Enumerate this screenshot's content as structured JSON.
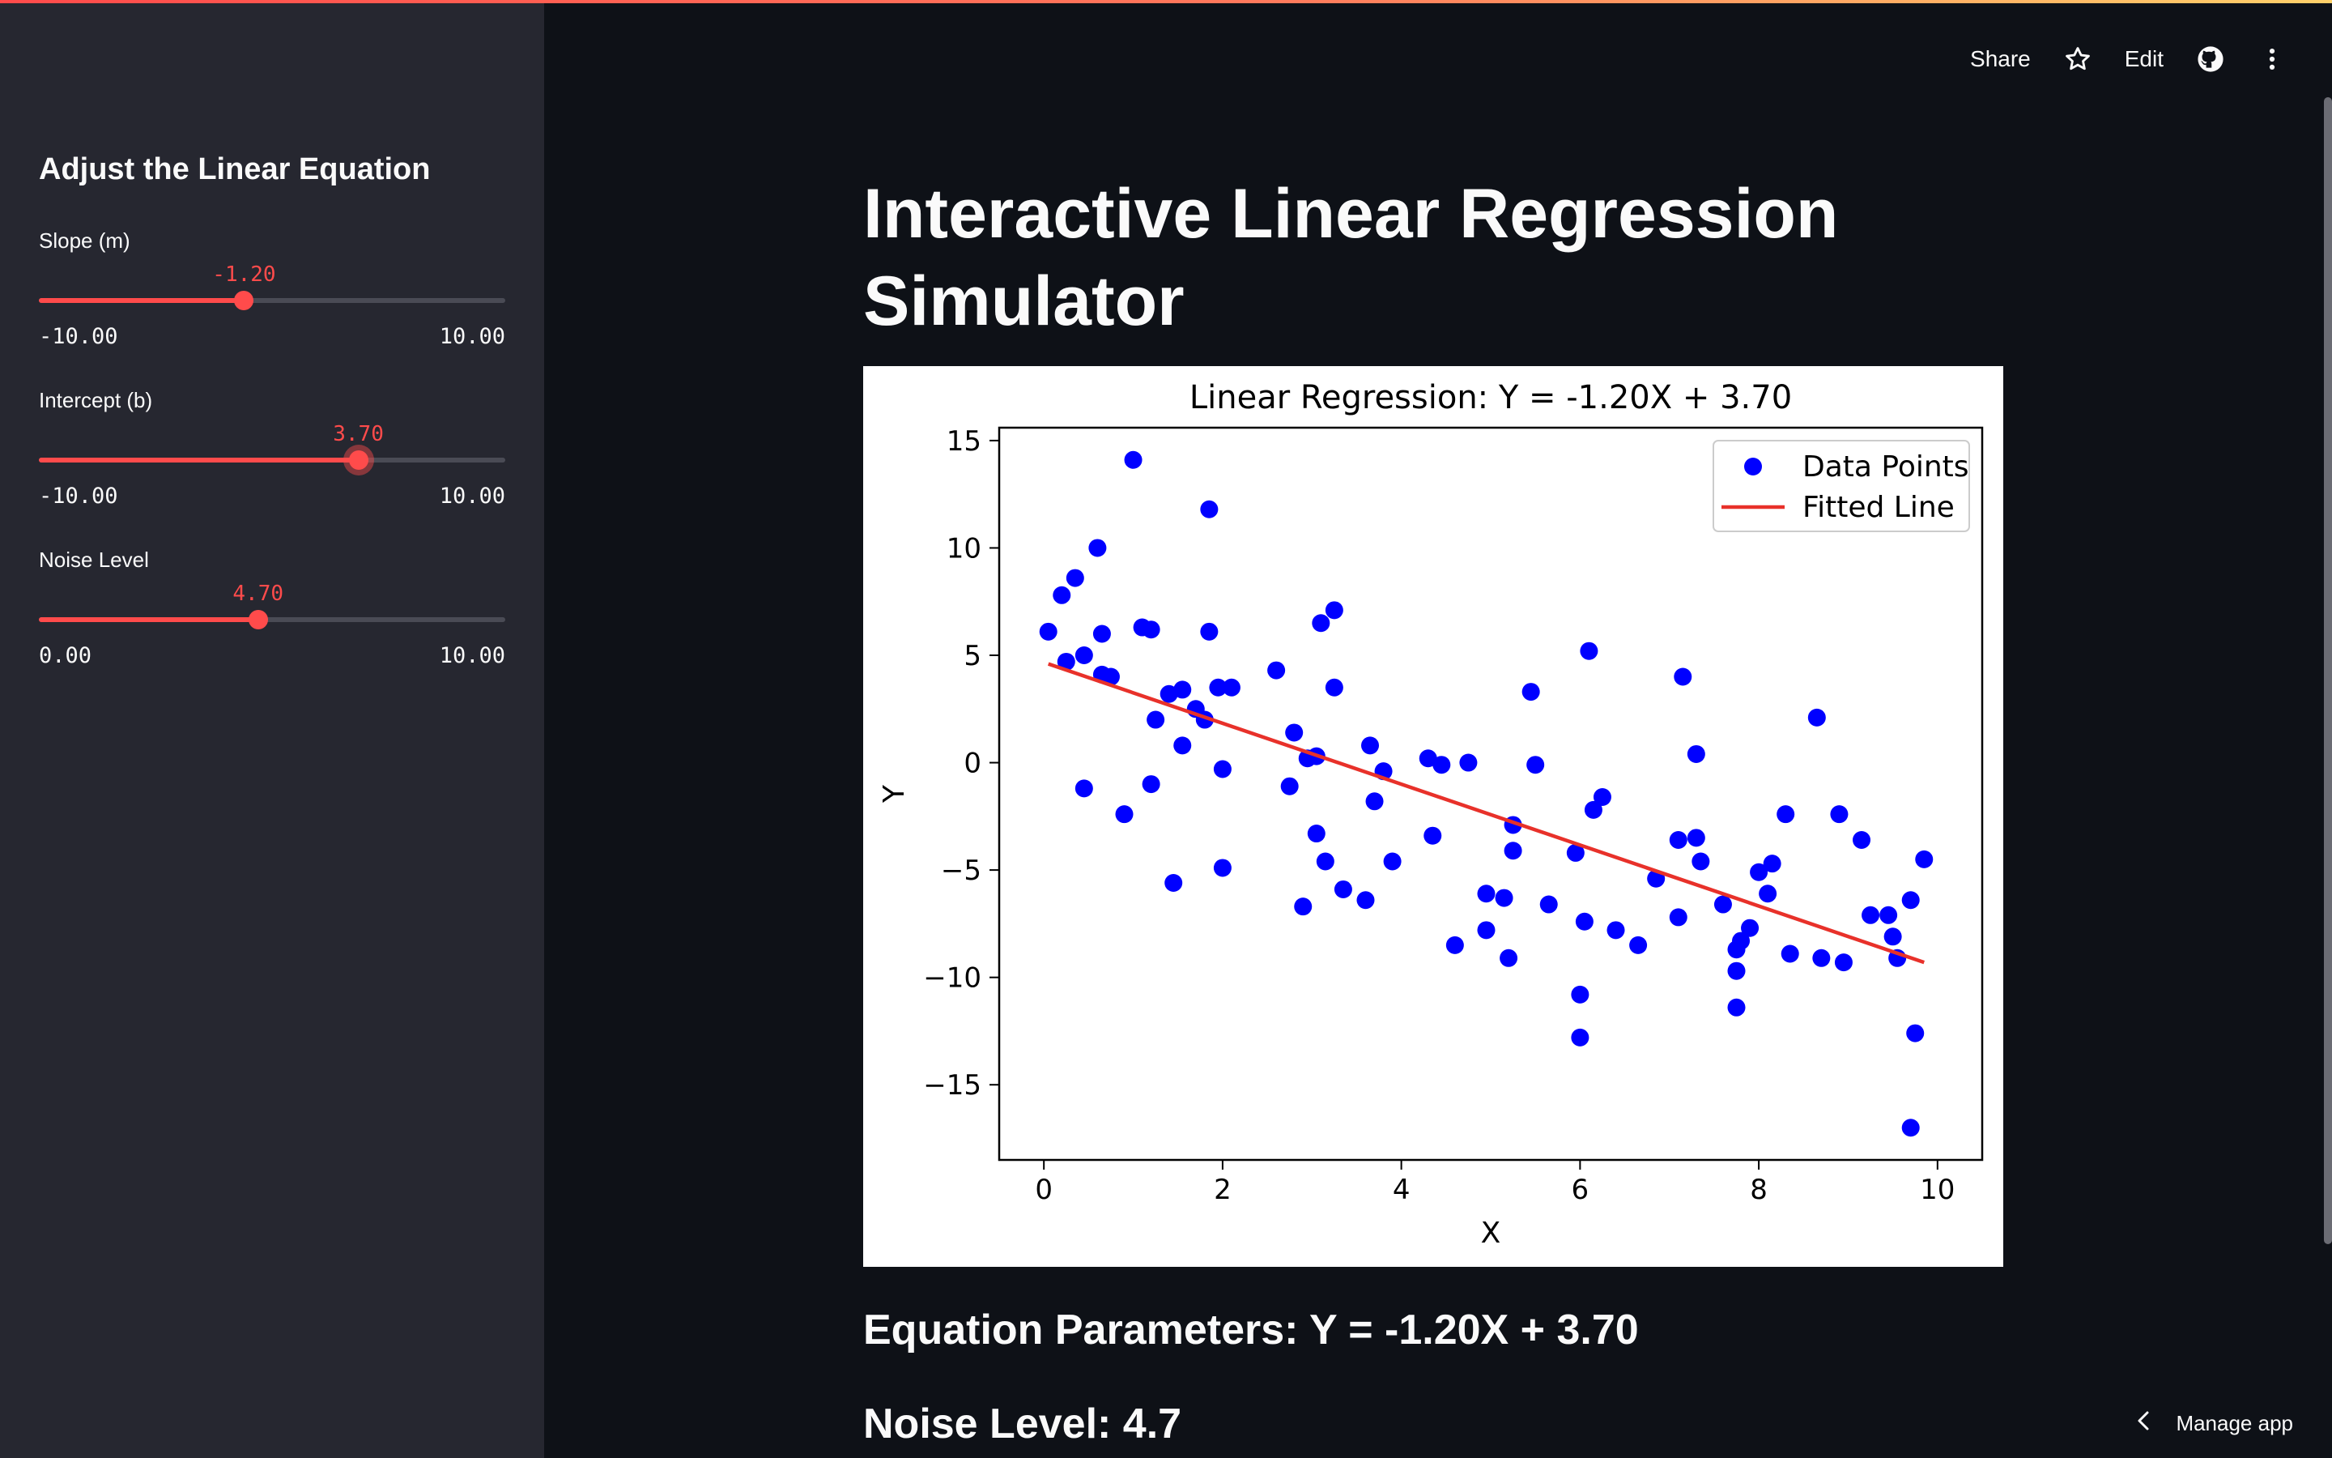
{
  "header": {
    "share_label": "Share",
    "edit_label": "Edit",
    "icons": [
      "star-icon",
      "github-icon",
      "more-vertical-icon"
    ]
  },
  "sidebar": {
    "title": "Adjust the Linear Equation",
    "sliders": [
      {
        "label": "Slope (m)",
        "value": "-1.20",
        "min": "-10.00",
        "max": "10.00",
        "fraction": 0.44
      },
      {
        "label": "Intercept (b)",
        "value": "3.70",
        "min": "-10.00",
        "max": "10.00",
        "fraction": 0.685
      },
      {
        "label": "Noise Level",
        "value": "4.70",
        "min": "0.00",
        "max": "10.00",
        "fraction": 0.47
      }
    ]
  },
  "main": {
    "title_line1": "Interactive Linear Regression",
    "title_line2": "Simulator",
    "equation_text": "Equation Parameters: Y = -1.20X + 3.70",
    "noise_text": "Noise Level: 4.7"
  },
  "footer": {
    "manage_label": "Manage app"
  },
  "colors": {
    "accent": "#ff4b4b",
    "points": "#0000ff",
    "line": "#e8312a"
  },
  "chart_data": {
    "type": "scatter",
    "title": "Linear Regression: Y = -1.20X + 3.70",
    "xlabel": "X",
    "ylabel": "Y",
    "xlim": [
      -0.5,
      10.5
    ],
    "ylim": [
      -18.5,
      15.6
    ],
    "xticks": [
      0,
      2,
      4,
      6,
      8,
      10
    ],
    "yticks": [
      15,
      10,
      5,
      0,
      -5,
      -10,
      -15
    ],
    "legend_position": "top-right",
    "grid": false,
    "series": [
      {
        "name": "Data Points",
        "kind": "scatter",
        "points": [
          [
            0.05,
            6.1
          ],
          [
            0.2,
            7.8
          ],
          [
            0.25,
            4.7
          ],
          [
            0.35,
            8.6
          ],
          [
            0.45,
            5.0
          ],
          [
            0.45,
            -1.2
          ],
          [
            0.6,
            10.0
          ],
          [
            0.65,
            6.0
          ],
          [
            0.65,
            4.1
          ],
          [
            0.75,
            4.0
          ],
          [
            0.9,
            -2.4
          ],
          [
            1.0,
            14.1
          ],
          [
            1.1,
            6.3
          ],
          [
            1.2,
            6.2
          ],
          [
            1.2,
            -1.0
          ],
          [
            1.25,
            2.0
          ],
          [
            1.4,
            3.2
          ],
          [
            1.45,
            -5.6
          ],
          [
            1.55,
            3.4
          ],
          [
            1.55,
            0.8
          ],
          [
            1.7,
            2.5
          ],
          [
            1.8,
            2.0
          ],
          [
            1.85,
            11.8
          ],
          [
            1.85,
            6.1
          ],
          [
            1.95,
            3.5
          ],
          [
            2.0,
            -0.3
          ],
          [
            2.0,
            -4.9
          ],
          [
            2.1,
            3.5
          ],
          [
            2.6,
            4.3
          ],
          [
            2.75,
            -1.1
          ],
          [
            2.8,
            1.4
          ],
          [
            2.9,
            -6.7
          ],
          [
            2.95,
            0.2
          ],
          [
            3.05,
            0.3
          ],
          [
            3.05,
            -3.3
          ],
          [
            3.1,
            6.5
          ],
          [
            3.15,
            -4.6
          ],
          [
            3.25,
            7.1
          ],
          [
            3.25,
            3.5
          ],
          [
            3.35,
            -5.9
          ],
          [
            3.6,
            -6.4
          ],
          [
            3.65,
            0.8
          ],
          [
            3.7,
            -1.8
          ],
          [
            3.8,
            -0.4
          ],
          [
            3.9,
            -4.6
          ],
          [
            4.3,
            0.2
          ],
          [
            4.35,
            -3.4
          ],
          [
            4.45,
            -0.1
          ],
          [
            4.6,
            -8.5
          ],
          [
            4.75,
            0.0
          ],
          [
            4.95,
            -6.1
          ],
          [
            4.95,
            -7.8
          ],
          [
            5.15,
            -6.3
          ],
          [
            5.2,
            -9.1
          ],
          [
            5.25,
            -2.9
          ],
          [
            5.25,
            -4.1
          ],
          [
            5.45,
            3.3
          ],
          [
            5.5,
            -0.1
          ],
          [
            5.65,
            -6.6
          ],
          [
            5.95,
            -4.2
          ],
          [
            6.0,
            -10.8
          ],
          [
            6.0,
            -12.8
          ],
          [
            6.05,
            -7.4
          ],
          [
            6.1,
            5.2
          ],
          [
            6.15,
            -2.2
          ],
          [
            6.25,
            -1.6
          ],
          [
            6.4,
            -7.8
          ],
          [
            6.65,
            -8.5
          ],
          [
            6.85,
            -5.4
          ],
          [
            7.1,
            -3.6
          ],
          [
            7.1,
            -7.2
          ],
          [
            7.15,
            4.0
          ],
          [
            7.3,
            -3.5
          ],
          [
            7.3,
            0.4
          ],
          [
            7.35,
            -4.6
          ],
          [
            7.6,
            -6.6
          ],
          [
            7.75,
            -9.7
          ],
          [
            7.75,
            -8.7
          ],
          [
            7.75,
            -11.4
          ],
          [
            7.8,
            -8.3
          ],
          [
            7.9,
            -7.7
          ],
          [
            8.0,
            -5.1
          ],
          [
            8.1,
            -6.1
          ],
          [
            8.15,
            -4.7
          ],
          [
            8.3,
            -2.4
          ],
          [
            8.35,
            -8.9
          ],
          [
            8.65,
            2.1
          ],
          [
            8.7,
            -9.1
          ],
          [
            8.9,
            -2.4
          ],
          [
            8.95,
            -9.3
          ],
          [
            9.15,
            -3.6
          ],
          [
            9.25,
            -7.1
          ],
          [
            9.45,
            -7.1
          ],
          [
            9.5,
            -8.1
          ],
          [
            9.55,
            -9.1
          ],
          [
            9.7,
            -17.0
          ],
          [
            9.7,
            -6.4
          ],
          [
            9.75,
            -12.6
          ],
          [
            9.85,
            -4.5
          ]
        ]
      },
      {
        "name": "Fitted Line",
        "kind": "line",
        "points": [
          [
            0.05,
            4.6
          ],
          [
            9.85,
            -9.3
          ]
        ]
      }
    ]
  }
}
